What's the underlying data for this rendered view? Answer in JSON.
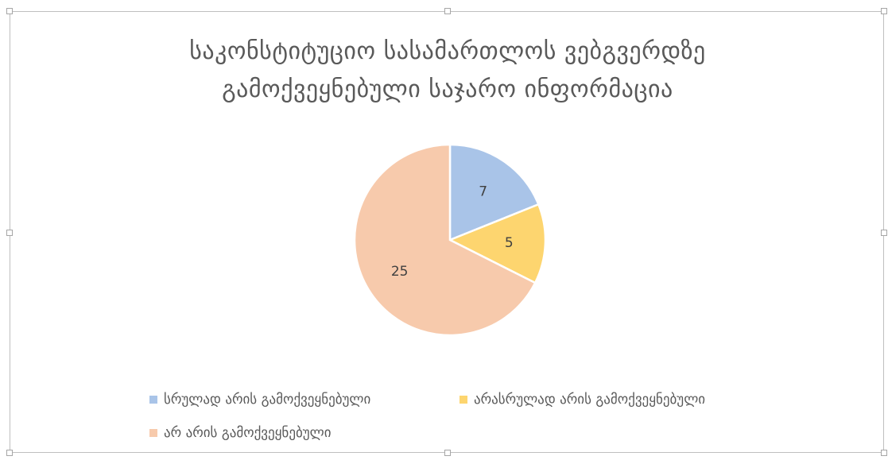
{
  "chart_data": {
    "type": "pie",
    "title_lines": [
      "საკონსტიტუციო სასამართლოს ვებგვერდზე",
      "გამოქვეყნებული საჯარო ინფორმაცია"
    ],
    "categories": [
      "სრულად არის გამოქვეყნებული",
      "არასრულად არის გამოქვეყნებული",
      "არ არის გამოქვეყნებული"
    ],
    "values": [
      7,
      5,
      25
    ],
    "colors": [
      "#a9c4e8",
      "#fdd56f",
      "#f7caac"
    ],
    "data_labels": [
      "7",
      "5",
      "25"
    ],
    "legend_position": "bottom"
  }
}
